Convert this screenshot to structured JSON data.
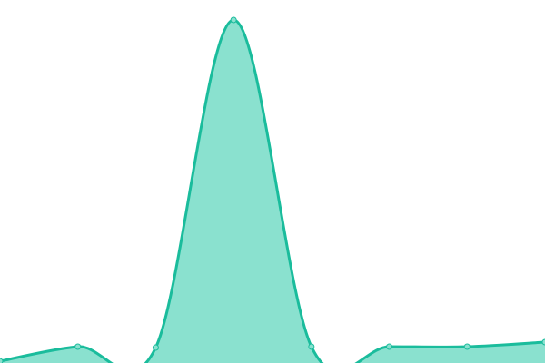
{
  "chart_data": {
    "type": "area",
    "title": "",
    "xlabel": "",
    "ylabel": "",
    "x": [
      0,
      1,
      2,
      3,
      4,
      5,
      6,
      7
    ],
    "values": [
      2,
      18,
      17,
      378,
      18,
      18,
      18,
      23
    ],
    "xlim": [
      0,
      7
    ],
    "ylim": [
      0,
      400
    ],
    "grid": false,
    "axes_visible": false,
    "smooth": true,
    "line_color": "#1abc9c",
    "fill_color": "#8ae1cf",
    "marker_fill": "#8ae1cf"
  }
}
